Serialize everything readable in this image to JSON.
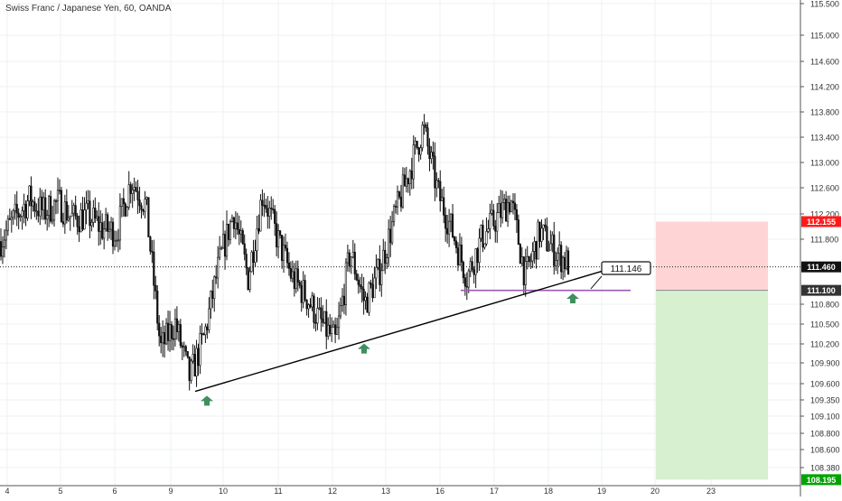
{
  "header": {
    "title": "Swiss Franc / Japanese Yen, 60, OANDA"
  },
  "colors": {
    "background": "#ffffff",
    "grid": "#eef0f3",
    "axis_line": "#555555",
    "axis_text": "#333333",
    "candle": "#111111",
    "stop_zone": "#ffd4d4",
    "target_zone": "#d6f0d0",
    "stop_label": "#ff1a1a",
    "target_label": "#00a300",
    "current_label": "#111111",
    "entry_label": "#333333",
    "support_line": "#9b59b6",
    "arrow": "#3f8f5f",
    "callout_border": "#111111"
  },
  "chart_data": {
    "type": "candlestick",
    "title": "Swiss Franc / Japanese Yen, 60, OANDA",
    "y_axis": {
      "position": "right",
      "ylim": [
        107.95,
        115.6
      ],
      "ticks": [
        "115.500",
        "115.000",
        "114.600",
        "114.200",
        "113.800",
        "113.400",
        "113.000",
        "112.600",
        "112.200",
        "111.800",
        "110.800",
        "110.500",
        "110.200",
        "109.900",
        "109.600",
        "109.350",
        "109.100",
        "108.800",
        "108.600",
        "108.380"
      ],
      "grid": true
    },
    "x_axis": {
      "ticks": [
        "4",
        "5",
        "6",
        "9",
        "10",
        "11",
        "12",
        "13",
        "16",
        "17",
        "18",
        "19",
        "20",
        "23"
      ],
      "grid": true
    },
    "price_labels": {
      "stop": "112.155",
      "current": "111.460",
      "entry": "111.100",
      "target": "108.195"
    },
    "position_zone": {
      "stop": 112.155,
      "entry": 111.1,
      "target": 108.195
    },
    "current_price": 111.46,
    "support_level": 111.1,
    "trendline": {
      "start_price": 109.55,
      "end_price": 111.4
    },
    "callout": {
      "label": "111.146"
    },
    "pivot_arrows": [
      {
        "near_day": "9",
        "price": 109.4
      },
      {
        "near_day": "12",
        "price": 110.2
      },
      {
        "near_day": "18",
        "price": 110.97
      }
    ],
    "price_path": [
      {
        "day": "4",
        "close": 111.85
      },
      {
        "day": "4",
        "close": 112.2
      },
      {
        "day": "4",
        "close": 112.5
      },
      {
        "day": "5",
        "close": 112.3
      },
      {
        "day": "5",
        "close": 112.45
      },
      {
        "day": "5",
        "close": 112.2
      },
      {
        "day": "6",
        "close": 112.25
      },
      {
        "day": "6",
        "close": 112.05
      },
      {
        "day": "6",
        "close": 112.0
      },
      {
        "day": "9",
        "close": 112.8
      },
      {
        "day": "9",
        "close": 112.4
      },
      {
        "day": "9",
        "close": 110.2
      },
      {
        "day": "9",
        "close": 110.6
      },
      {
        "day": "9",
        "close": 109.75
      },
      {
        "day": "10",
        "close": 110.4
      },
      {
        "day": "10",
        "close": 111.5
      },
      {
        "day": "11",
        "close": 112.3
      },
      {
        "day": "11",
        "close": 111.3
      },
      {
        "day": "11",
        "close": 112.6
      },
      {
        "day": "11",
        "close": 111.9
      },
      {
        "day": "12",
        "close": 111.3
      },
      {
        "day": "12",
        "close": 111.0
      },
      {
        "day": "12",
        "close": 110.6
      },
      {
        "day": "12",
        "close": 110.3
      },
      {
        "day": "13",
        "close": 111.7
      },
      {
        "day": "13",
        "close": 110.9
      },
      {
        "day": "13",
        "close": 111.4
      },
      {
        "day": "13",
        "close": 112.2
      },
      {
        "day": "16",
        "close": 112.9
      },
      {
        "day": "16",
        "close": 113.6
      },
      {
        "day": "16",
        "close": 112.6
      },
      {
        "day": "16",
        "close": 112.0
      },
      {
        "day": "17",
        "close": 111.3
      },
      {
        "day": "17",
        "close": 111.9
      },
      {
        "day": "17",
        "close": 112.2
      },
      {
        "day": "17",
        "close": 112.5
      },
      {
        "day": "18",
        "close": 111.3
      },
      {
        "day": "18",
        "close": 112.0
      },
      {
        "day": "18",
        "close": 111.7
      },
      {
        "day": "18",
        "close": 111.5
      }
    ]
  }
}
